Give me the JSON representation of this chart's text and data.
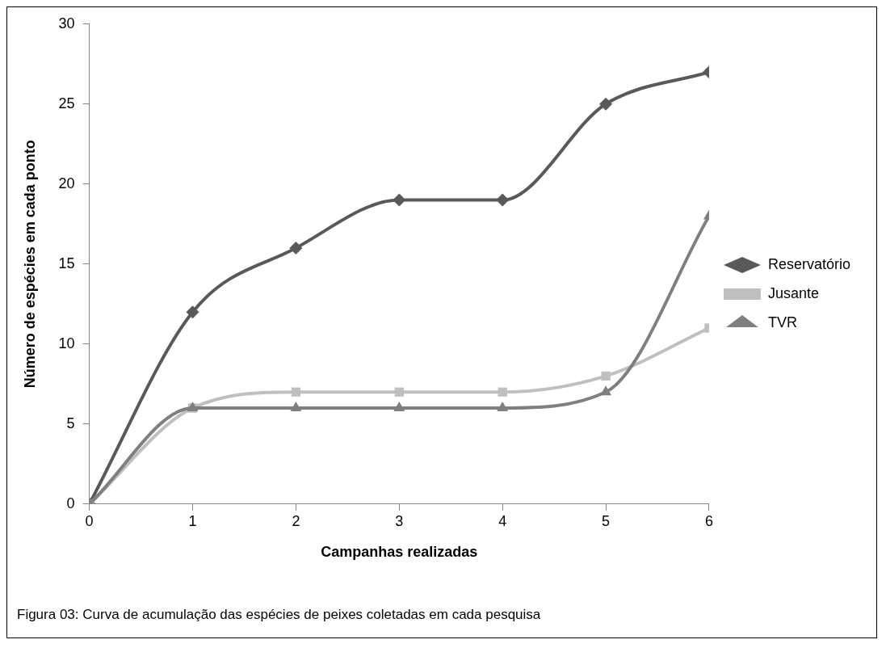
{
  "chart_data": {
    "type": "line",
    "xlabel": "Campanhas realizadas",
    "ylabel": "Número de espécies em cada ponto",
    "x": [
      0,
      1,
      2,
      3,
      4,
      5,
      6
    ],
    "xlim": [
      0,
      6
    ],
    "xticks": [
      0,
      1,
      2,
      3,
      4,
      5,
      6
    ],
    "ylim": [
      0,
      30
    ],
    "yticks": [
      0,
      5,
      10,
      15,
      20,
      25,
      30
    ],
    "grid": false,
    "legend": "right",
    "line_style": "solid",
    "series": [
      {
        "name": "Reservatório",
        "color": "#595959",
        "marker": "diamond",
        "values": [
          0,
          12,
          16,
          19,
          19,
          25,
          27
        ]
      },
      {
        "name": "Jusante",
        "color": "#bfbfbf",
        "marker": "square",
        "values": [
          0,
          6,
          7,
          7,
          7,
          8,
          11
        ]
      },
      {
        "name": "TVR",
        "color": "#7f7f7f",
        "marker": "triangle",
        "values": [
          0,
          6,
          6,
          6,
          6,
          7,
          18
        ]
      }
    ],
    "annotations": [
      "Figura 03: Curva de acumulação das espécies de peixes coletadas em cada pesquisa"
    ]
  }
}
